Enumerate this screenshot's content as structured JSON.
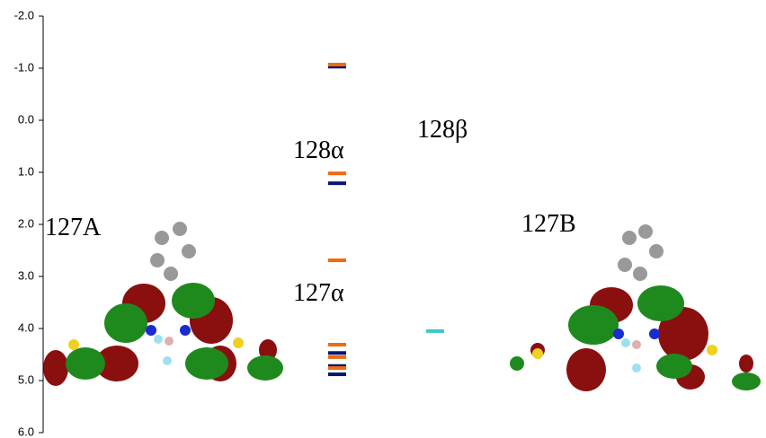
{
  "chart_data": {
    "type": "levels",
    "ylim": [
      -2,
      6
    ],
    "y_inverted": true,
    "yticks": [
      {
        "value": -2,
        "label": "-2.0"
      },
      {
        "value": -1,
        "label": "-1.0"
      },
      {
        "value": 0,
        "label": "0.0"
      },
      {
        "value": 1,
        "label": "1.0"
      },
      {
        "value": 2,
        "label": "2.0"
      },
      {
        "value": 3,
        "label": "3.0"
      },
      {
        "value": 4,
        "label": "4.0"
      },
      {
        "value": 5,
        "label": "5.0"
      },
      {
        "value": 6,
        "label": "6.0"
      }
    ],
    "series": [
      {
        "color": "#0b1670",
        "values": [
          -1.03,
          1.21,
          4.47,
          4.72,
          4.88
        ]
      },
      {
        "color": "#3cc8c8",
        "values": [
          4.05
        ]
      },
      {
        "color": "#f26a10",
        "values": [
          -1.07,
          1.02,
          2.69,
          4.31,
          4.55,
          4.76
        ]
      }
    ],
    "annotations": [
      "128α",
      "128β",
      "127α",
      "127A",
      "127B"
    ]
  }
}
